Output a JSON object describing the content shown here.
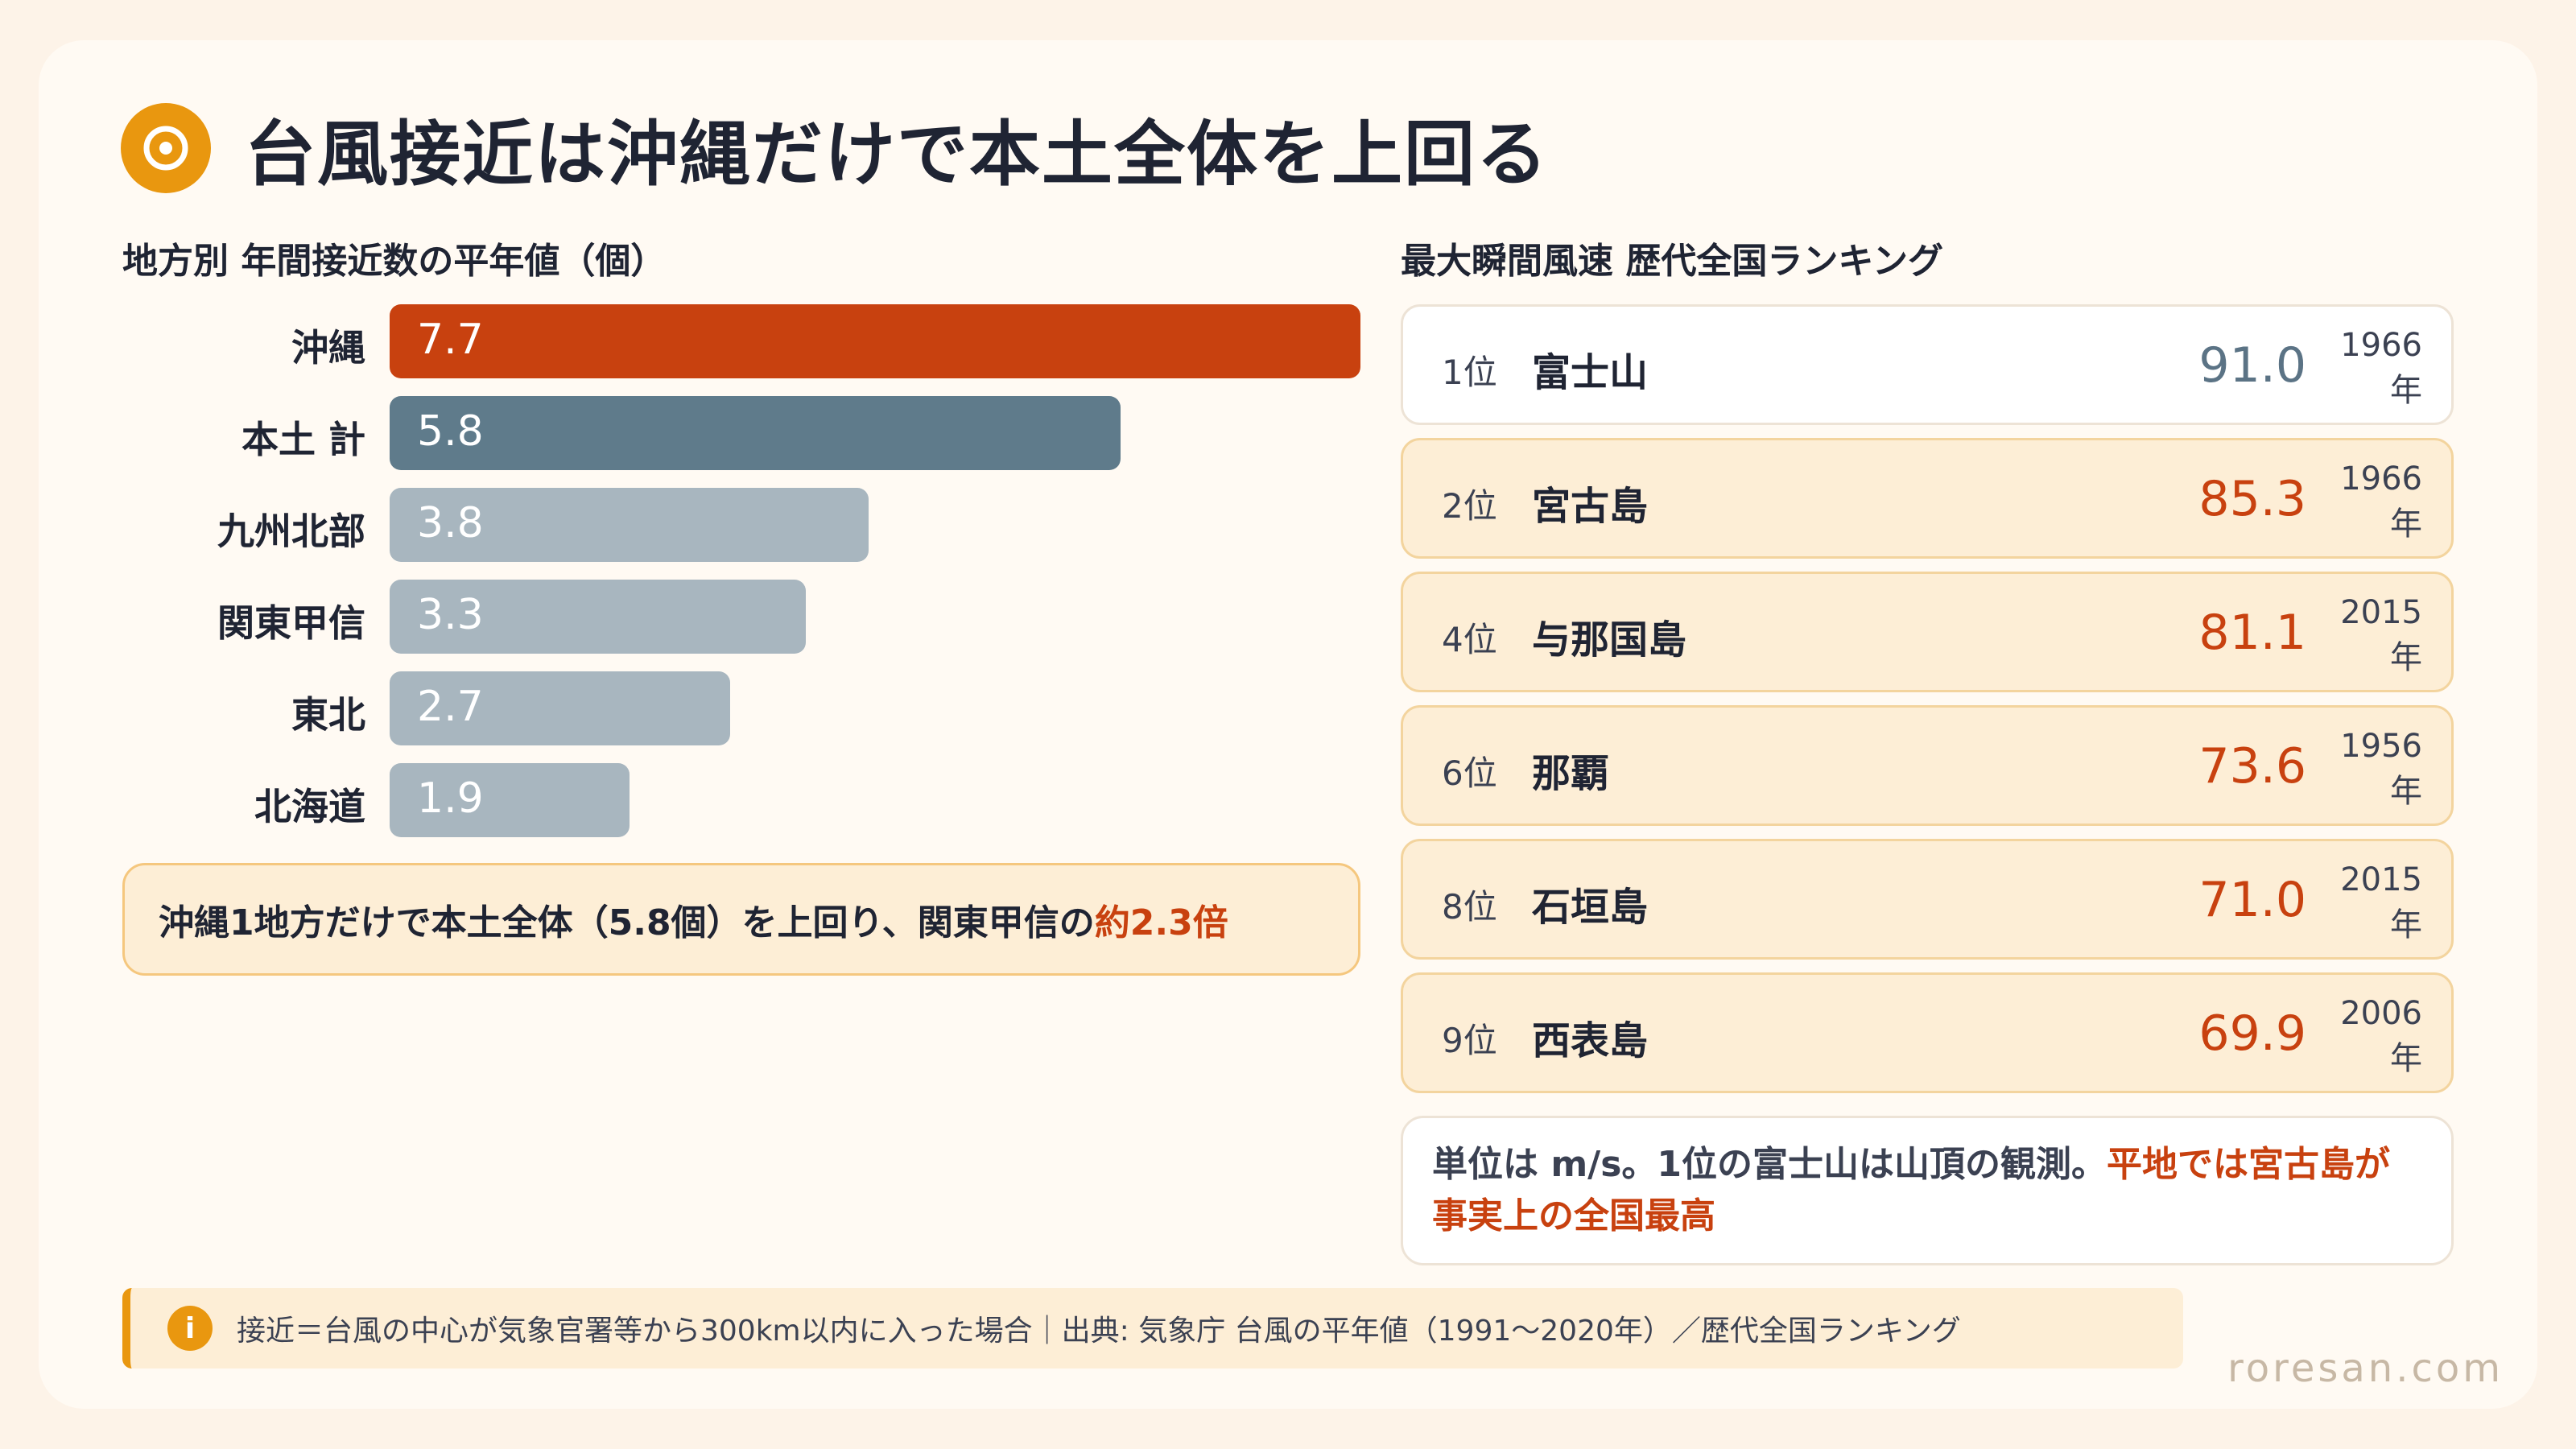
{
  "title": "台風接近は沖縄だけで本土全体を上回る",
  "left": {
    "section_title": "地方別 年間接近数の平年値（個）",
    "note_text": "沖縄1地方だけで本土全体（5.8個）を上回り、関東甲信の",
    "note_highlight": "約2.3倍"
  },
  "chart_data": {
    "type": "bar",
    "orientation": "horizontal",
    "categories": [
      "沖縄",
      "本土 計",
      "九州北部",
      "関東甲信",
      "東北",
      "北海道"
    ],
    "values": [
      7.7,
      5.8,
      3.8,
      3.3,
      2.7,
      1.9
    ],
    "value_labels": [
      "7.7",
      "5.8",
      "3.8",
      "3.3",
      "2.7",
      "1.9"
    ],
    "xlim": [
      0,
      7.7
    ],
    "grid": false,
    "colors": [
      "#c8410f",
      "#5f7b8b",
      "#a8b6bf",
      "#a8b6bf",
      "#a8b6bf",
      "#a8b6bf"
    ]
  },
  "right": {
    "section_title": "最大瞬間風速 歴代全国ランキング",
    "rankings": [
      {
        "rank": "1位",
        "name": "富士山",
        "value": "91.0",
        "year": "1966",
        "year_unit": "年"
      },
      {
        "rank": "2位",
        "name": "宮古島",
        "value": "85.3",
        "year": "1966",
        "year_unit": "年"
      },
      {
        "rank": "4位",
        "name": "与那国島",
        "value": "81.1",
        "year": "2015",
        "year_unit": "年"
      },
      {
        "rank": "6位",
        "name": "那覇",
        "value": "73.6",
        "year": "1956",
        "year_unit": "年"
      },
      {
        "rank": "8位",
        "name": "石垣島",
        "value": "71.0",
        "year": "2015",
        "year_unit": "年"
      },
      {
        "rank": "9位",
        "name": "西表島",
        "value": "69.9",
        "year": "2006",
        "year_unit": "年"
      }
    ],
    "note_text": "単位は m/s。1位の富士山は山頂の観測。",
    "note_highlight": "平地では宮古島が事実上の全国最高"
  },
  "footer": {
    "icon": "info-icon",
    "icon_glyph": "i",
    "text": "接近＝台風の中心が気象官署等から300km以内に入った場合｜出典: 気象庁 台風の平年値（1991〜2020年）／歴代全国ランキング"
  },
  "brand": "roresan.com",
  "colors": {
    "accent": "#e9970f",
    "highlight": "#c8410f",
    "muted_bar": "#a8b6bf",
    "mainland_bar": "#5f7b8b"
  }
}
